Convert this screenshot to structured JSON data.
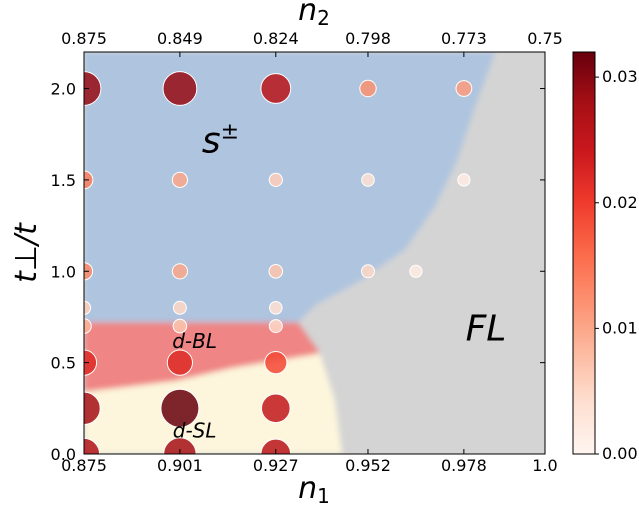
{
  "chart_data": {
    "type": "scatter",
    "xlabel_main": "n",
    "xlabel_sub": "1",
    "x2label_main": "n",
    "x2label_sub": "2",
    "ylabel": "t⊥/t",
    "xlim": [
      0.875,
      1.0
    ],
    "ylim": [
      0.0,
      2.2
    ],
    "x_ticks": [
      {
        "value": 0.875,
        "label": "0.875"
      },
      {
        "value": 0.901,
        "label": "0.901"
      },
      {
        "value": 0.927,
        "label": "0.927"
      },
      {
        "value": 0.952,
        "label": "0.952"
      },
      {
        "value": 0.978,
        "label": "0.978"
      },
      {
        "value": 1.0,
        "label": "1.0"
      }
    ],
    "x2_ticks": [
      {
        "value": 0.875,
        "label": "0.875"
      },
      {
        "value": 0.901,
        "label": "0.849"
      },
      {
        "value": 0.927,
        "label": "0.824"
      },
      {
        "value": 0.952,
        "label": "0.798"
      },
      {
        "value": 0.978,
        "label": "0.773"
      },
      {
        "value": 1.0,
        "label": "0.75"
      }
    ],
    "y_ticks": [
      {
        "value": 0.0,
        "label": "0.0"
      },
      {
        "value": 0.5,
        "label": "0.5"
      },
      {
        "value": 1.0,
        "label": "1.0"
      },
      {
        "value": 1.5,
        "label": "1.5"
      },
      {
        "value": 2.0,
        "label": "2.0"
      }
    ],
    "regions": [
      {
        "name": "s±",
        "label_main": "s",
        "label_sup": "±",
        "color": "#aec4df",
        "label_pos": [
          0.912,
          1.65
        ],
        "boundary": [
          [
            0.875,
            2.2
          ],
          [
            0.9865,
            2.2
          ],
          [
            0.981,
            1.9
          ],
          [
            0.976,
            1.6
          ],
          [
            0.97,
            1.35
          ],
          [
            0.962,
            1.12
          ],
          [
            0.95,
            0.95
          ],
          [
            0.938,
            0.82
          ],
          [
            0.933,
            0.72
          ],
          [
            0.875,
            0.72
          ]
        ]
      },
      {
        "name": "d-BL",
        "label": "d-BL",
        "color": "#ef8584",
        "label_pos": [
          0.905,
          0.58
        ],
        "boundary": [
          [
            0.875,
            0.72
          ],
          [
            0.933,
            0.72
          ],
          [
            0.939,
            0.55
          ],
          [
            0.93,
            0.52
          ],
          [
            0.915,
            0.47
          ],
          [
            0.9,
            0.4
          ],
          [
            0.875,
            0.34
          ]
        ]
      },
      {
        "name": "d-SL",
        "label": "d-SL",
        "color": "#fdf6dc",
        "label_pos": [
          0.905,
          0.09
        ],
        "boundary": [
          [
            0.875,
            0.34
          ],
          [
            0.9,
            0.4
          ],
          [
            0.915,
            0.47
          ],
          [
            0.93,
            0.52
          ],
          [
            0.939,
            0.55
          ],
          [
            0.943,
            0.3
          ],
          [
            0.945,
            0.0
          ],
          [
            0.875,
            0.0
          ]
        ]
      },
      {
        "name": "FL",
        "label": "FL",
        "color": "#d4d4d4",
        "label_pos": [
          0.984,
          0.62
        ]
      }
    ],
    "colorbar": {
      "vmin": 0.0,
      "vmax": 0.032,
      "ticks": [
        {
          "value": 0.0,
          "label": "0.00"
        },
        {
          "value": 0.01,
          "label": "0.01"
        },
        {
          "value": 0.02,
          "label": "0.02"
        },
        {
          "value": 0.03,
          "label": "0.03"
        }
      ],
      "colormap": "Reds"
    },
    "points": [
      {
        "x": 0.875,
        "y": 2.0,
        "v": 0.029
      },
      {
        "x": 0.901,
        "y": 2.0,
        "v": 0.029
      },
      {
        "x": 0.927,
        "y": 2.0,
        "v": 0.026
      },
      {
        "x": 0.952,
        "y": 2.0,
        "v": 0.012
      },
      {
        "x": 0.978,
        "y": 2.0,
        "v": 0.011
      },
      {
        "x": 0.875,
        "y": 1.5,
        "v": 0.014
      },
      {
        "x": 0.901,
        "y": 1.5,
        "v": 0.01
      },
      {
        "x": 0.927,
        "y": 1.5,
        "v": 0.006
      },
      {
        "x": 0.952,
        "y": 1.5,
        "v": 0.004
      },
      {
        "x": 0.978,
        "y": 1.5,
        "v": 0.002
      },
      {
        "x": 0.875,
        "y": 1.0,
        "v": 0.013
      },
      {
        "x": 0.901,
        "y": 1.0,
        "v": 0.01
      },
      {
        "x": 0.927,
        "y": 1.0,
        "v": 0.007
      },
      {
        "x": 0.952,
        "y": 1.0,
        "v": 0.005
      },
      {
        "x": 0.965,
        "y": 1.0,
        "v": 0.002
      },
      {
        "x": 0.875,
        "y": 0.8,
        "v": 0.006
      },
      {
        "x": 0.901,
        "y": 0.8,
        "v": 0.005
      },
      {
        "x": 0.927,
        "y": 0.8,
        "v": 0.004
      },
      {
        "x": 0.875,
        "y": 0.7,
        "v": 0.009
      },
      {
        "x": 0.901,
        "y": 0.7,
        "v": 0.007
      },
      {
        "x": 0.927,
        "y": 0.7,
        "v": 0.005
      },
      {
        "x": 0.875,
        "y": 0.5,
        "v": 0.022
      },
      {
        "x": 0.901,
        "y": 0.5,
        "v": 0.022
      },
      {
        "x": 0.927,
        "y": 0.5,
        "v": 0.019
      },
      {
        "x": 0.875,
        "y": 0.25,
        "v": 0.028
      },
      {
        "x": 0.901,
        "y": 0.25,
        "v": 0.032
      },
      {
        "x": 0.927,
        "y": 0.25,
        "v": 0.025
      },
      {
        "x": 0.875,
        "y": 0.0,
        "v": 0.027
      },
      {
        "x": 0.901,
        "y": 0.0,
        "v": 0.028
      },
      {
        "x": 0.927,
        "y": 0.0,
        "v": 0.026
      }
    ]
  }
}
